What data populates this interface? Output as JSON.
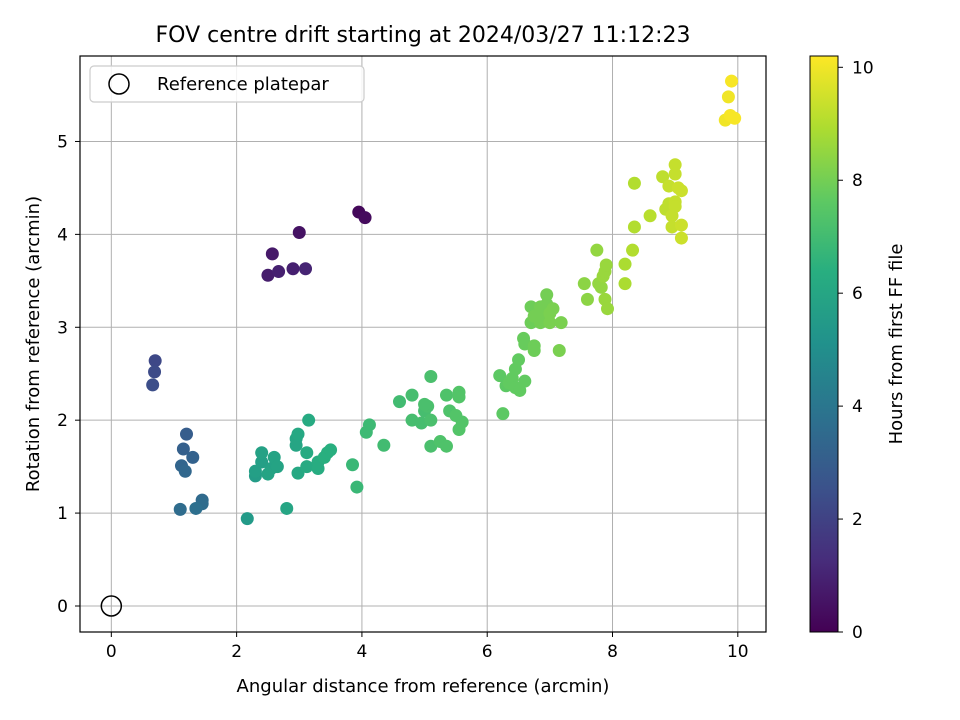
{
  "chart_data": {
    "type": "scatter",
    "title": "FOV centre drift starting at 2024/03/27 11:12:23",
    "xlabel": "Angular distance from reference (arcmin)",
    "ylabel": "Rotation from reference (arcmin)",
    "xlim": [
      -0.5,
      10.45
    ],
    "ylim": [
      -0.28,
      5.92
    ],
    "xticks": [
      0,
      2,
      4,
      6,
      8,
      10
    ],
    "yticks": [
      0,
      1,
      2,
      3,
      4,
      5
    ],
    "grid": true,
    "legend": {
      "position": "top-left",
      "entries": [
        "Reference platepar"
      ]
    },
    "reference_point": {
      "x": 0,
      "y": 0
    },
    "colorbar": {
      "label": "Hours from first FF file",
      "min": 0,
      "max": 10.2,
      "ticks": [
        0,
        2,
        4,
        6,
        8,
        10
      ],
      "colormap": "viridis"
    },
    "points": [
      {
        "x": 3.95,
        "y": 4.24,
        "c": 0.2
      },
      {
        "x": 4.05,
        "y": 4.18,
        "c": 0.3
      },
      {
        "x": 3.0,
        "y": 4.02,
        "c": 0.5
      },
      {
        "x": 2.57,
        "y": 3.79,
        "c": 0.7
      },
      {
        "x": 2.5,
        "y": 3.56,
        "c": 0.8
      },
      {
        "x": 2.67,
        "y": 3.6,
        "c": 0.9
      },
      {
        "x": 2.9,
        "y": 3.63,
        "c": 0.9
      },
      {
        "x": 3.1,
        "y": 3.63,
        "c": 1.0
      },
      {
        "x": 0.7,
        "y": 2.64,
        "c": 2.2
      },
      {
        "x": 0.69,
        "y": 2.52,
        "c": 2.3
      },
      {
        "x": 0.66,
        "y": 2.38,
        "c": 2.4
      },
      {
        "x": 1.2,
        "y": 1.85,
        "c": 3.0
      },
      {
        "x": 1.15,
        "y": 1.69,
        "c": 3.1
      },
      {
        "x": 1.3,
        "y": 1.6,
        "c": 3.2
      },
      {
        "x": 1.12,
        "y": 1.51,
        "c": 3.3
      },
      {
        "x": 1.18,
        "y": 1.45,
        "c": 3.4
      },
      {
        "x": 1.45,
        "y": 1.14,
        "c": 3.5
      },
      {
        "x": 1.45,
        "y": 1.1,
        "c": 3.6
      },
      {
        "x": 1.35,
        "y": 1.05,
        "c": 3.7
      },
      {
        "x": 1.1,
        "y": 1.04,
        "c": 3.6
      },
      {
        "x": 2.17,
        "y": 0.94,
        "c": 5.5
      },
      {
        "x": 2.3,
        "y": 1.4,
        "c": 5.6
      },
      {
        "x": 2.3,
        "y": 1.45,
        "c": 5.7
      },
      {
        "x": 2.4,
        "y": 1.55,
        "c": 5.7
      },
      {
        "x": 2.4,
        "y": 1.65,
        "c": 5.8
      },
      {
        "x": 2.55,
        "y": 1.48,
        "c": 5.8
      },
      {
        "x": 2.5,
        "y": 1.42,
        "c": 5.9
      },
      {
        "x": 2.6,
        "y": 1.6,
        "c": 5.9
      },
      {
        "x": 2.65,
        "y": 1.5,
        "c": 5.9
      },
      {
        "x": 2.8,
        "y": 1.05,
        "c": 6.0
      },
      {
        "x": 2.95,
        "y": 1.73,
        "c": 6.0
      },
      {
        "x": 2.95,
        "y": 1.8,
        "c": 6.0
      },
      {
        "x": 2.98,
        "y": 1.85,
        "c": 6.1
      },
      {
        "x": 2.98,
        "y": 1.43,
        "c": 6.1
      },
      {
        "x": 3.12,
        "y": 1.65,
        "c": 6.2
      },
      {
        "x": 3.15,
        "y": 2.0,
        "c": 6.2
      },
      {
        "x": 3.12,
        "y": 1.5,
        "c": 6.2
      },
      {
        "x": 3.3,
        "y": 1.55,
        "c": 6.3
      },
      {
        "x": 3.3,
        "y": 1.48,
        "c": 6.3
      },
      {
        "x": 3.4,
        "y": 1.6,
        "c": 6.4
      },
      {
        "x": 3.45,
        "y": 1.65,
        "c": 6.4
      },
      {
        "x": 3.5,
        "y": 1.68,
        "c": 6.4
      },
      {
        "x": 3.85,
        "y": 1.52,
        "c": 6.8
      },
      {
        "x": 3.92,
        "y": 1.28,
        "c": 6.8
      },
      {
        "x": 4.07,
        "y": 1.87,
        "c": 6.9
      },
      {
        "x": 4.12,
        "y": 1.95,
        "c": 6.9
      },
      {
        "x": 4.35,
        "y": 1.73,
        "c": 7.0
      },
      {
        "x": 4.6,
        "y": 2.2,
        "c": 7.0
      },
      {
        "x": 4.8,
        "y": 2.27,
        "c": 7.1
      },
      {
        "x": 4.8,
        "y": 2.0,
        "c": 7.1
      },
      {
        "x": 4.95,
        "y": 1.97,
        "c": 7.1
      },
      {
        "x": 5.0,
        "y": 2.1,
        "c": 7.1
      },
      {
        "x": 5.05,
        "y": 2.15,
        "c": 7.2
      },
      {
        "x": 5.1,
        "y": 2.47,
        "c": 7.2
      },
      {
        "x": 5.1,
        "y": 1.72,
        "c": 7.2
      },
      {
        "x": 5.1,
        "y": 2.0,
        "c": 7.2
      },
      {
        "x": 5.0,
        "y": 2.17,
        "c": 7.2
      },
      {
        "x": 5.25,
        "y": 1.77,
        "c": 7.3
      },
      {
        "x": 5.35,
        "y": 1.72,
        "c": 7.3
      },
      {
        "x": 5.35,
        "y": 2.27,
        "c": 7.3
      },
      {
        "x": 5.4,
        "y": 2.1,
        "c": 7.3
      },
      {
        "x": 5.5,
        "y": 2.05,
        "c": 7.4
      },
      {
        "x": 5.55,
        "y": 2.3,
        "c": 7.4
      },
      {
        "x": 5.55,
        "y": 2.25,
        "c": 7.4
      },
      {
        "x": 5.55,
        "y": 1.9,
        "c": 7.4
      },
      {
        "x": 5.6,
        "y": 1.98,
        "c": 7.4
      },
      {
        "x": 6.2,
        "y": 2.48,
        "c": 7.6
      },
      {
        "x": 6.25,
        "y": 2.07,
        "c": 7.6
      },
      {
        "x": 6.3,
        "y": 2.37,
        "c": 7.6
      },
      {
        "x": 6.35,
        "y": 2.4,
        "c": 7.7
      },
      {
        "x": 6.4,
        "y": 2.45,
        "c": 7.7
      },
      {
        "x": 6.45,
        "y": 2.55,
        "c": 7.7
      },
      {
        "x": 6.45,
        "y": 2.35,
        "c": 7.7
      },
      {
        "x": 6.5,
        "y": 2.65,
        "c": 7.7
      },
      {
        "x": 6.52,
        "y": 2.32,
        "c": 7.7
      },
      {
        "x": 6.6,
        "y": 2.42,
        "c": 7.7
      },
      {
        "x": 6.58,
        "y": 2.88,
        "c": 7.8
      },
      {
        "x": 6.6,
        "y": 2.82,
        "c": 7.8
      },
      {
        "x": 6.75,
        "y": 2.8,
        "c": 7.9
      },
      {
        "x": 6.75,
        "y": 2.75,
        "c": 7.9
      },
      {
        "x": 6.7,
        "y": 3.05,
        "c": 7.9
      },
      {
        "x": 6.7,
        "y": 3.22,
        "c": 7.9
      },
      {
        "x": 6.75,
        "y": 3.12,
        "c": 8.0
      },
      {
        "x": 6.85,
        "y": 3.05,
        "c": 8.0
      },
      {
        "x": 6.85,
        "y": 3.22,
        "c": 8.0
      },
      {
        "x": 6.9,
        "y": 3.1,
        "c": 8.0
      },
      {
        "x": 6.95,
        "y": 3.35,
        "c": 8.0
      },
      {
        "x": 6.95,
        "y": 3.25,
        "c": 8.0
      },
      {
        "x": 7.0,
        "y": 3.15,
        "c": 8.1
      },
      {
        "x": 7.0,
        "y": 3.05,
        "c": 8.1
      },
      {
        "x": 7.05,
        "y": 3.2,
        "c": 8.1
      },
      {
        "x": 7.15,
        "y": 2.75,
        "c": 8.1
      },
      {
        "x": 7.18,
        "y": 3.05,
        "c": 8.1
      },
      {
        "x": 7.55,
        "y": 3.47,
        "c": 8.4
      },
      {
        "x": 7.6,
        "y": 3.3,
        "c": 8.4
      },
      {
        "x": 7.75,
        "y": 3.83,
        "c": 8.5
      },
      {
        "x": 7.78,
        "y": 3.47,
        "c": 8.5
      },
      {
        "x": 7.82,
        "y": 3.43,
        "c": 8.5
      },
      {
        "x": 7.85,
        "y": 3.55,
        "c": 8.6
      },
      {
        "x": 7.88,
        "y": 3.6,
        "c": 8.6
      },
      {
        "x": 7.9,
        "y": 3.67,
        "c": 8.6
      },
      {
        "x": 7.88,
        "y": 3.3,
        "c": 8.6
      },
      {
        "x": 7.92,
        "y": 3.2,
        "c": 8.6
      },
      {
        "x": 8.2,
        "y": 3.47,
        "c": 8.9
      },
      {
        "x": 8.2,
        "y": 3.68,
        "c": 8.9
      },
      {
        "x": 8.32,
        "y": 3.83,
        "c": 9.0
      },
      {
        "x": 8.35,
        "y": 4.08,
        "c": 9.0
      },
      {
        "x": 8.35,
        "y": 4.55,
        "c": 9.0
      },
      {
        "x": 8.6,
        "y": 4.2,
        "c": 9.1
      },
      {
        "x": 8.8,
        "y": 4.62,
        "c": 9.2
      },
      {
        "x": 8.85,
        "y": 4.27,
        "c": 9.2
      },
      {
        "x": 8.9,
        "y": 4.33,
        "c": 9.2
      },
      {
        "x": 8.9,
        "y": 4.52,
        "c": 9.3
      },
      {
        "x": 8.95,
        "y": 4.2,
        "c": 9.3
      },
      {
        "x": 8.95,
        "y": 4.08,
        "c": 9.3
      },
      {
        "x": 9.0,
        "y": 4.65,
        "c": 9.3
      },
      {
        "x": 9.0,
        "y": 4.75,
        "c": 9.3
      },
      {
        "x": 9.0,
        "y": 4.35,
        "c": 9.3
      },
      {
        "x": 9.0,
        "y": 4.3,
        "c": 9.3
      },
      {
        "x": 9.05,
        "y": 4.5,
        "c": 9.4
      },
      {
        "x": 9.1,
        "y": 4.47,
        "c": 9.4
      },
      {
        "x": 9.1,
        "y": 4.1,
        "c": 9.4
      },
      {
        "x": 9.1,
        "y": 3.96,
        "c": 9.4
      },
      {
        "x": 9.8,
        "y": 5.23,
        "c": 10.0
      },
      {
        "x": 9.85,
        "y": 5.48,
        "c": 10.0
      },
      {
        "x": 9.88,
        "y": 5.28,
        "c": 10.1
      },
      {
        "x": 9.9,
        "y": 5.65,
        "c": 10.1
      },
      {
        "x": 9.95,
        "y": 5.25,
        "c": 10.1
      }
    ]
  }
}
